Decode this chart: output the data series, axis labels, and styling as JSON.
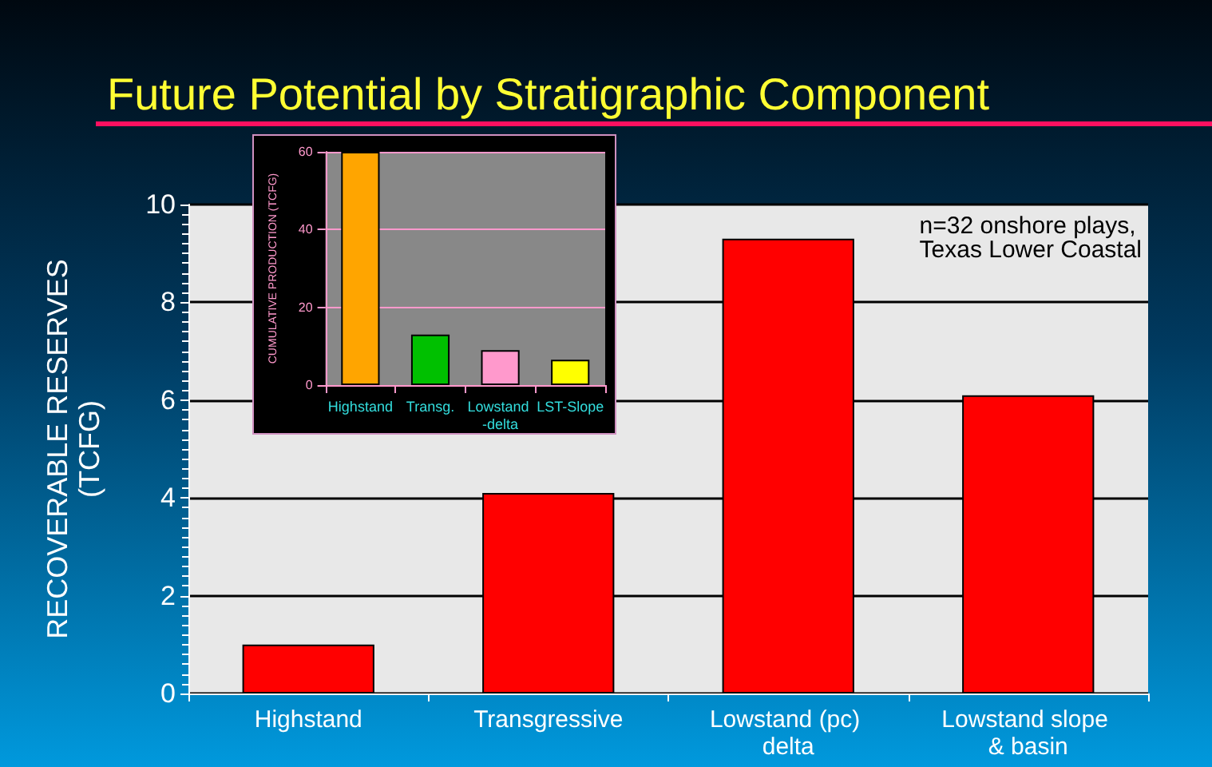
{
  "chart_data": [
    {
      "type": "bar",
      "title": "Future Potential by Stratigraphic Component",
      "ylabel": "RECOVERABLE RESERVES\n(TCFG)",
      "annotations": [
        "n=32 onshore plays,\nTexas Lower Coastal"
      ],
      "categories": [
        "Highstand",
        "Transgressive",
        "Lowstand (pc) delta",
        "Lowstand slope & basin"
      ],
      "values": [
        1.0,
        4.1,
        9.3,
        6.1
      ],
      "color": "#ff0000",
      "ylim": [
        0,
        10
      ],
      "yticks": [
        0,
        2,
        4,
        6,
        8,
        10
      ],
      "grid": "y"
    },
    {
      "type": "bar",
      "ylabel": "CUMULATIVE PRODUCTION (TCFG)",
      "categories": [
        "Highstand",
        "Transg.",
        "Lowstand -delta",
        "LST-Slope"
      ],
      "values": [
        60,
        13,
        9,
        6.5
      ],
      "colors": [
        "#ffa500",
        "#00c000",
        "#ff99cc",
        "#ffff00"
      ],
      "ylim": [
        0,
        60
      ],
      "yticks": [
        0,
        20,
        40,
        60
      ],
      "grid": "y"
    }
  ]
}
